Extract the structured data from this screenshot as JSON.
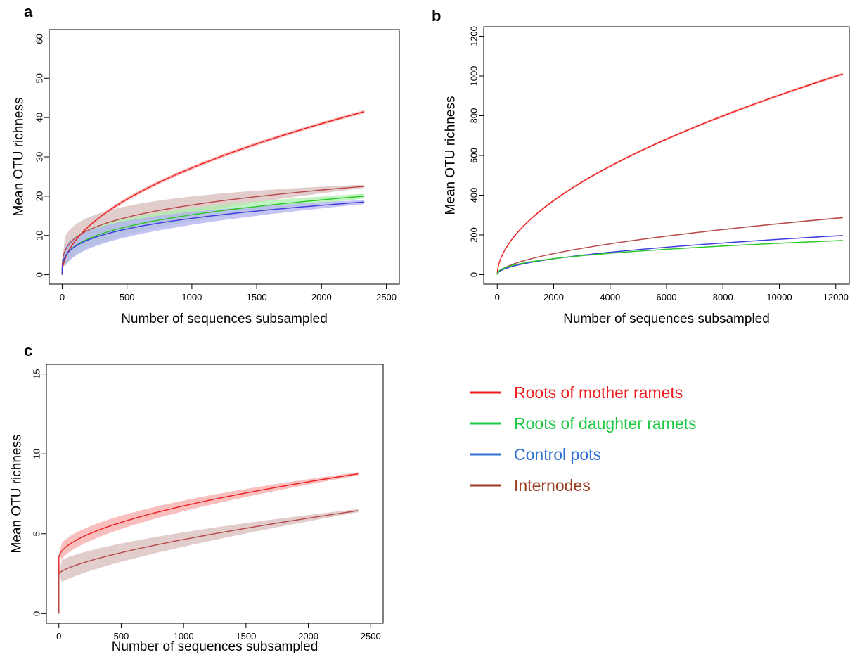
{
  "colors": {
    "roots_mother": "#ee1c1c",
    "roots_daughter": "#1ec842",
    "control": "#2e6fd0",
    "internodes": "#9c3a1e",
    "band_mother": "#f7a9a9",
    "band_daughter": "#a9efa9",
    "band_control": "#b3b0f2",
    "band_internodes": "#d8bcbc",
    "line_daughter": "#28c828",
    "line_control": "#3a3ae0",
    "line_internodes": "#b84848"
  },
  "legend": {
    "items": [
      {
        "label": "Roots of mother ramets",
        "color": "#ee1c1c"
      },
      {
        "label": "Roots of daughter ramets",
        "color": "#1ec842"
      },
      {
        "label": "Control pots",
        "color": "#2e6fd0"
      },
      {
        "label": "Internodes",
        "color": "#9c3a1e"
      }
    ]
  },
  "chart_data": [
    {
      "panel": "a",
      "type": "line",
      "xlabel": "Number of sequences subsampled",
      "ylabel": "Mean OTU richness",
      "xlim": [
        0,
        2500
      ],
      "ylim": [
        0,
        60
      ],
      "xticks": [
        0,
        500,
        1000,
        1500,
        2000,
        2500
      ],
      "yticks": [
        0,
        10,
        20,
        30,
        40,
        50,
        60
      ],
      "grid": false,
      "series": [
        {
          "legend": "Roots of mother ramets",
          "x_max": 2330,
          "exponent": 0.5,
          "y_end": 41.5,
          "band_start": 0.5,
          "band_end": 0.4,
          "band_start_lo": 3.5,
          "band_start_hi": 7
        },
        {
          "legend": "Internodes",
          "x_max": 2330,
          "exponent": 0.28,
          "y_end": 22.5,
          "band_start": 3.5,
          "band_end": 0.4,
          "band_start_lo": 3,
          "band_start_hi": 6
        },
        {
          "legend": "Roots of daughter ramets",
          "x_max": 2330,
          "exponent": 0.32,
          "y_end": 20,
          "band_start": 2.5,
          "band_end": 0.6,
          "band_start_lo": 2.5,
          "band_start_hi": 5
        },
        {
          "legend": "Control pots",
          "x_max": 2330,
          "exponent": 0.3,
          "y_end": 18.5,
          "band_start": 2.5,
          "band_end": 0.5,
          "band_start_lo": 2.5,
          "band_start_hi": 5
        }
      ]
    },
    {
      "panel": "b",
      "type": "line",
      "xlabel": "Number of sequences subsampled",
      "ylabel": "Mean OTU richness",
      "xlim": [
        0,
        12000
      ],
      "ylim": [
        0,
        1200
      ],
      "xticks": [
        0,
        2000,
        4000,
        6000,
        8000,
        10000,
        12000
      ],
      "yticks": [
        0,
        200,
        400,
        600,
        800,
        1000,
        1200
      ],
      "grid": false,
      "series": [
        {
          "legend": "Roots of mother ramets",
          "x_max": 12250,
          "exponent": 0.55,
          "y_end": 1010,
          "band_start": 5,
          "band_end": 7
        },
        {
          "legend": "Internodes",
          "x_max": 12250,
          "exponent": 0.55,
          "y_end": 287,
          "band_start": 2,
          "band_end": 4
        },
        {
          "legend": "Control pots",
          "x_max": 12250,
          "exponent": 0.5,
          "y_end": 197,
          "band_start": 2,
          "band_end": 3
        },
        {
          "legend": "Roots of daughter ramets",
          "x_max": 12250,
          "exponent": 0.42,
          "y_end": 172,
          "band_start": 2,
          "band_end": 3
        }
      ]
    },
    {
      "panel": "c",
      "type": "line",
      "xlabel": "Number of sequences subsampled",
      "ylabel": "Mean OTU richness",
      "xlim": [
        0,
        2500
      ],
      "ylim": [
        0,
        15
      ],
      "xticks": [
        0,
        500,
        1000,
        1500,
        2000,
        2500
      ],
      "yticks": [
        0,
        5,
        10,
        15
      ],
      "grid": false,
      "series": [
        {
          "legend": "Roots of mother ramets",
          "x_max": 2400,
          "exponent": 0.55,
          "y_start": 3.5,
          "y_end": 8.75,
          "band_start": 0.5,
          "band_end": 0.1
        },
        {
          "legend": "Internodes",
          "x_max": 2400,
          "exponent": 0.7,
          "y_start": 2.5,
          "y_end": 6.45,
          "band_start": 0.7,
          "band_end": 0.1
        }
      ]
    }
  ]
}
